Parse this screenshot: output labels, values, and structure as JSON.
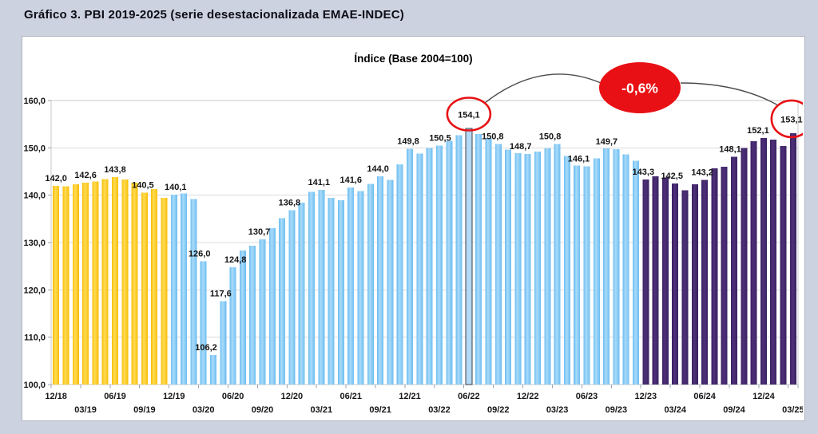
{
  "page": {
    "background": "#cdd2e1"
  },
  "chart_data": {
    "type": "bar",
    "title": "Gráfico 3. PBI 2019-2025 (serie desestacionalizada EMAE-INDEC)",
    "subtitle": "Índice (Base 2004=100)",
    "ylim": [
      100,
      160
    ],
    "ytick_step": 10,
    "ytick_labels": [
      "100,0",
      "110,0",
      "120,0",
      "130,0",
      "140,0",
      "150,0",
      "160,0"
    ],
    "grid": true,
    "legend": "none",
    "x_axis_labels_row1": [
      "12/18",
      "06/19",
      "12/19",
      "06/20",
      "12/20",
      "06/21",
      "12/21",
      "06/22",
      "12/22",
      "06/23",
      "12/23",
      "06/24",
      "12/24"
    ],
    "x_axis_labels_row2": [
      "03/19",
      "09/19",
      "03/20",
      "09/20",
      "03/21",
      "09/21",
      "03/22",
      "09/22",
      "03/23",
      "09/23",
      "03/24",
      "09/24",
      "03/25"
    ],
    "segments": [
      {
        "name": "2019 (yellow)",
        "color": "#F9BE06",
        "light": "#FFDC55"
      },
      {
        "name": "2020-2023 (blue)",
        "color": "#6CBDF0",
        "light": "#A9DBFA"
      },
      {
        "name": "2024-2025 (purple)",
        "color": "#3A2163",
        "light": "#4E3078"
      }
    ],
    "annotation": {
      "badge": "-0,6%",
      "badge_color": "#E81014",
      "circled_values": [
        "154,1",
        "153,1"
      ],
      "line_color": "#4a4a4a"
    },
    "points": [
      {
        "month": "12/18",
        "value": 142.0,
        "label": "142,0",
        "segment": 0
      },
      {
        "month": "01/19",
        "value": 141.9,
        "segment": 0
      },
      {
        "month": "02/19",
        "value": 142.3,
        "segment": 0
      },
      {
        "month": "03/19",
        "value": 142.6,
        "label": "142,6",
        "segment": 0
      },
      {
        "month": "04/19",
        "value": 142.9,
        "segment": 0
      },
      {
        "month": "05/19",
        "value": 143.4,
        "segment": 0
      },
      {
        "month": "06/19",
        "value": 143.8,
        "label": "143,8",
        "segment": 0
      },
      {
        "month": "07/19",
        "value": 143.3,
        "segment": 0
      },
      {
        "month": "08/19",
        "value": 142.6,
        "segment": 0
      },
      {
        "month": "09/19",
        "value": 140.5,
        "label": "140,5",
        "label_dx": -2,
        "segment": 0
      },
      {
        "month": "10/19",
        "value": 141.3,
        "segment": 0
      },
      {
        "month": "11/19",
        "value": 139.4,
        "segment": 0
      },
      {
        "month": "12/19",
        "value": 140.1,
        "label": "140,1",
        "label_dx": 2,
        "segment": 1
      },
      {
        "month": "01/20",
        "value": 140.4,
        "segment": 1
      },
      {
        "month": "02/20",
        "value": 139.2,
        "segment": 1
      },
      {
        "month": "03/20",
        "value": 126.0,
        "label": "126,0",
        "label_dx": -5,
        "segment": 1
      },
      {
        "month": "04/20",
        "value": 106.2,
        "label": "106,2",
        "label_dx": -9,
        "segment": 1
      },
      {
        "month": "05/20",
        "value": 117.6,
        "label": "117,6",
        "label_dx": -3,
        "segment": 1
      },
      {
        "month": "06/20",
        "value": 124.8,
        "label": "124,8",
        "label_dx": 3,
        "segment": 1
      },
      {
        "month": "07/20",
        "value": 128.3,
        "segment": 1
      },
      {
        "month": "08/20",
        "value": 129.3,
        "segment": 1
      },
      {
        "month": "09/20",
        "value": 130.7,
        "label": "130,7",
        "label_dx": -4,
        "segment": 1
      },
      {
        "month": "10/20",
        "value": 133.0,
        "segment": 1
      },
      {
        "month": "11/20",
        "value": 135.1,
        "segment": 1
      },
      {
        "month": "12/20",
        "value": 136.8,
        "label": "136,8",
        "label_dx": -3,
        "segment": 1
      },
      {
        "month": "01/21",
        "value": 138.4,
        "segment": 1
      },
      {
        "month": "02/21",
        "value": 140.7,
        "segment": 1
      },
      {
        "month": "03/21",
        "value": 141.1,
        "label": "141,1",
        "label_dx": -3,
        "segment": 1
      },
      {
        "month": "04/21",
        "value": 139.4,
        "segment": 1
      },
      {
        "month": "05/21",
        "value": 138.9,
        "segment": 1
      },
      {
        "month": "06/21",
        "value": 141.6,
        "label": "141,6",
        "segment": 1
      },
      {
        "month": "07/21",
        "value": 140.9,
        "segment": 1
      },
      {
        "month": "08/21",
        "value": 142.4,
        "segment": 1
      },
      {
        "month": "09/21",
        "value": 144.0,
        "label": "144,0",
        "label_dx": -3,
        "segment": 1
      },
      {
        "month": "10/21",
        "value": 143.2,
        "segment": 1
      },
      {
        "month": "11/21",
        "value": 146.5,
        "segment": 1
      },
      {
        "month": "12/21",
        "value": 149.8,
        "label": "149,8",
        "label_dx": -2,
        "segment": 1
      },
      {
        "month": "01/22",
        "value": 148.8,
        "segment": 1
      },
      {
        "month": "02/22",
        "value": 150.0,
        "segment": 1
      },
      {
        "month": "03/22",
        "value": 150.5,
        "label": "150,5",
        "label_dx": 1,
        "segment": 1
      },
      {
        "month": "04/22",
        "value": 151.5,
        "segment": 1
      },
      {
        "month": "05/22",
        "value": 152.7,
        "segment": 1
      },
      {
        "month": "06/22",
        "value": 154.1,
        "label": "154,1",
        "segment": 1,
        "highlight": true,
        "circled": true
      },
      {
        "month": "07/22",
        "value": 152.9,
        "segment": 1
      },
      {
        "month": "08/22",
        "value": 152.1,
        "segment": 1
      },
      {
        "month": "09/22",
        "value": 150.8,
        "label": "150,8",
        "label_dx": -7,
        "segment": 1
      },
      {
        "month": "10/22",
        "value": 149.6,
        "segment": 1
      },
      {
        "month": "11/22",
        "value": 148.9,
        "segment": 1
      },
      {
        "month": "12/22",
        "value": 148.7,
        "label": "148,7",
        "label_dx": -9,
        "segment": 1
      },
      {
        "month": "01/23",
        "value": 149.2,
        "segment": 1
      },
      {
        "month": "02/23",
        "value": 149.9,
        "segment": 1
      },
      {
        "month": "03/23",
        "value": 150.8,
        "label": "150,8",
        "label_dx": -9,
        "segment": 1
      },
      {
        "month": "04/23",
        "value": 148.3,
        "segment": 1
      },
      {
        "month": "05/23",
        "value": 146.3,
        "segment": 1
      },
      {
        "month": "06/23",
        "value": 146.1,
        "label": "146,1",
        "label_dx": -10,
        "segment": 1
      },
      {
        "month": "07/23",
        "value": 147.8,
        "segment": 1
      },
      {
        "month": "08/23",
        "value": 149.9,
        "segment": 1
      },
      {
        "month": "09/23",
        "value": 149.7,
        "label": "149,7",
        "label_dx": -12,
        "segment": 1
      },
      {
        "month": "10/23",
        "value": 148.6,
        "segment": 1
      },
      {
        "month": "11/23",
        "value": 147.3,
        "segment": 1
      },
      {
        "month": "12/23",
        "value": 143.3,
        "label": "143,3",
        "label_dx": -3,
        "segment": 2
      },
      {
        "month": "01/24",
        "value": 144.0,
        "segment": 2
      },
      {
        "month": "02/24",
        "value": 143.7,
        "segment": 2
      },
      {
        "month": "03/24",
        "value": 142.5,
        "label": "142,5",
        "label_dx": -4,
        "segment": 2
      },
      {
        "month": "04/24",
        "value": 141.0,
        "segment": 2
      },
      {
        "month": "05/24",
        "value": 142.3,
        "segment": 2
      },
      {
        "month": "06/24",
        "value": 143.2,
        "label": "143,2",
        "label_dx": -3,
        "segment": 2
      },
      {
        "month": "07/24",
        "value": 145.7,
        "segment": 2
      },
      {
        "month": "08/24",
        "value": 146.0,
        "segment": 2
      },
      {
        "month": "09/24",
        "value": 148.1,
        "label": "148,1",
        "label_dx": -5,
        "segment": 2
      },
      {
        "month": "10/24",
        "value": 150.0,
        "segment": 2
      },
      {
        "month": "11/24",
        "value": 151.4,
        "segment": 2
      },
      {
        "month": "12/24",
        "value": 152.1,
        "label": "152,1",
        "label_dx": -7,
        "segment": 2
      },
      {
        "month": "01/25",
        "value": 151.7,
        "segment": 2
      },
      {
        "month": "02/25",
        "value": 150.4,
        "segment": 2
      },
      {
        "month": "03/25",
        "value": 153.1,
        "label": "153,1",
        "label_dx": -2,
        "segment": 2,
        "circled": true
      }
    ]
  }
}
